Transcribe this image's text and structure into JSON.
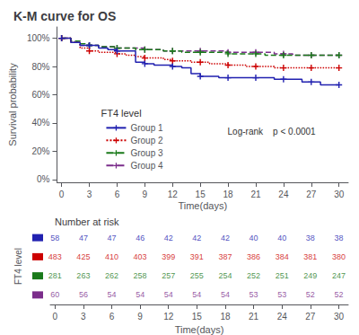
{
  "chart_data": [
    {
      "type": "step",
      "title": "K-M curve for OS",
      "xlabel": "Time(days)",
      "ylabel": "Survival probability",
      "x": [
        0,
        1,
        2,
        3,
        4,
        5,
        6,
        7,
        8,
        9,
        10,
        11,
        12,
        13,
        14,
        15,
        16,
        17,
        18,
        19,
        20,
        21,
        22,
        23,
        24,
        25,
        26,
        27,
        28,
        29,
        30
      ],
      "series": [
        {
          "name": "Group 1",
          "color": "#2121b0",
          "line_style": "solid",
          "marker": "plus",
          "values": [
            1.0,
            0.97,
            0.95,
            0.95,
            0.93,
            0.92,
            0.91,
            0.91,
            0.83,
            0.82,
            0.81,
            0.81,
            0.8,
            0.79,
            0.75,
            0.73,
            0.73,
            0.72,
            0.72,
            0.72,
            0.72,
            0.72,
            0.72,
            0.71,
            0.71,
            0.71,
            0.69,
            0.69,
            0.67,
            0.67,
            0.67
          ]
        },
        {
          "name": "Group 2",
          "color": "#cc0000",
          "line_style": "dotted",
          "marker": "plus",
          "values": [
            1.0,
            0.97,
            0.93,
            0.91,
            0.9,
            0.9,
            0.89,
            0.88,
            0.87,
            0.86,
            0.86,
            0.85,
            0.84,
            0.84,
            0.83,
            0.83,
            0.82,
            0.82,
            0.81,
            0.81,
            0.8,
            0.8,
            0.8,
            0.79,
            0.79,
            0.79,
            0.79,
            0.79,
            0.79,
            0.79,
            0.79
          ]
        },
        {
          "name": "Group 3",
          "color": "#1a7a1a",
          "line_style": "dashed",
          "marker": "plus",
          "values": [
            1.0,
            0.98,
            0.96,
            0.95,
            0.94,
            0.94,
            0.93,
            0.93,
            0.92,
            0.92,
            0.92,
            0.91,
            0.91,
            0.9,
            0.9,
            0.9,
            0.9,
            0.9,
            0.89,
            0.89,
            0.89,
            0.89,
            0.88,
            0.88,
            0.88,
            0.88,
            0.88,
            0.88,
            0.88,
            0.88,
            0.88
          ]
        },
        {
          "name": "Group 4",
          "color": "#7b2d8b",
          "line_style": "dashed",
          "marker": "plus",
          "values": [
            1.0,
            0.97,
            0.95,
            0.95,
            0.94,
            0.94,
            0.93,
            0.93,
            0.93,
            0.92,
            0.92,
            0.91,
            0.91,
            0.91,
            0.91,
            0.91,
            0.91,
            0.91,
            0.9,
            0.9,
            0.9,
            0.9,
            0.9,
            0.89,
            0.89,
            0.88,
            0.88,
            0.88,
            0.88,
            0.88,
            0.88
          ]
        }
      ],
      "xlim": [
        -0.5,
        31
      ],
      "ylim": [
        -0.02,
        1.08
      ],
      "xticks": [
        0,
        3,
        6,
        9,
        12,
        15,
        18,
        21,
        24,
        27,
        30
      ],
      "yticks": [
        {
          "value": 0.0,
          "label": "0%"
        },
        {
          "value": 0.2,
          "label": "20%"
        },
        {
          "value": 0.4,
          "label": "40%"
        },
        {
          "value": 0.6,
          "label": "60%"
        },
        {
          "value": 0.8,
          "label": "80%"
        },
        {
          "value": 1.0,
          "label": "100%"
        }
      ],
      "grid": false,
      "legend": "lower left",
      "legend_title": "FT4 level",
      "annotations": [
        "Log-rank    p < 0.0001"
      ]
    },
    {
      "type": "table",
      "title": "Number at risk",
      "xlabel": "Time(days)",
      "ylabel": "FT4 level",
      "x": [
        0,
        3,
        6,
        9,
        12,
        15,
        18,
        21,
        24,
        27,
        30
      ],
      "series": [
        {
          "color": "#2121b0",
          "values": [
            58,
            47,
            47,
            46,
            42,
            42,
            42,
            40,
            40,
            38,
            38
          ]
        },
        {
          "color": "#cc0000",
          "values": [
            483,
            425,
            410,
            403,
            399,
            391,
            387,
            386,
            384,
            381,
            380
          ]
        },
        {
          "color": "#1a7a1a",
          "values": [
            281,
            263,
            262,
            258,
            257,
            255,
            254,
            252,
            251,
            249,
            247
          ]
        },
        {
          "color": "#7b2d8b",
          "values": [
            60,
            56,
            54,
            54,
            54,
            54,
            54,
            53,
            53,
            52,
            52
          ]
        }
      ],
      "xlim": [
        -0.5,
        31
      ],
      "xticks": [
        0,
        3,
        6,
        9,
        12,
        15,
        18,
        21,
        24,
        27,
        30
      ],
      "data_labels": true
    }
  ]
}
